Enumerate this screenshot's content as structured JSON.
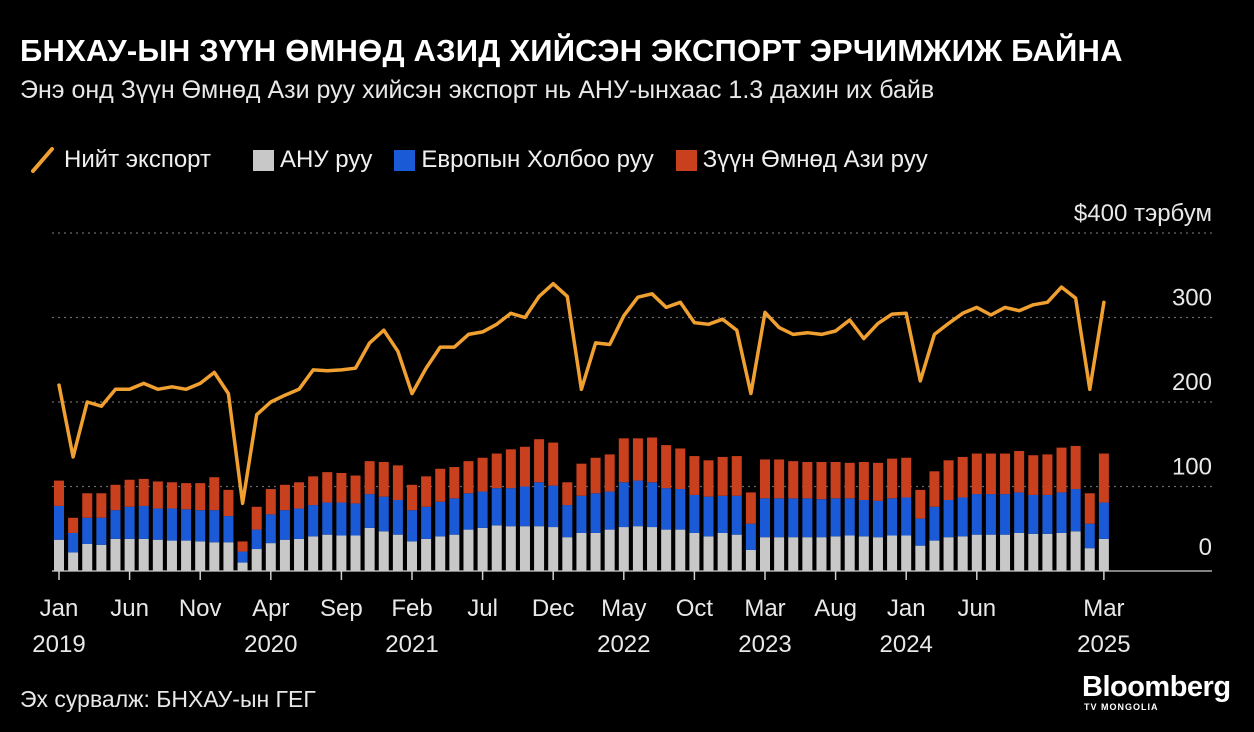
{
  "header": {
    "title": "БНХАУ-ЫН ЗҮҮН ӨМНӨД АЗИД ХИЙСЭН ЭКСПОРТ ЭРЧИМЖИЖ БАЙНА",
    "subtitle": "Энэ онд Зүүн Өмнөд Ази руу хийсэн экспорт нь АНУ-ынхаас 1.3 дахин их байв"
  },
  "legend": {
    "total": "Нийт экспорт",
    "us": "АНУ руу",
    "eu": "Европын Холбоо руу",
    "sea": "Зүүн Өмнөд Ази руу"
  },
  "footer": {
    "source": "Эх сурвалж: БНХАУ-ын ГЕГ",
    "logo_main": "Bloomberg",
    "logo_sub": "TV MONGOLIA"
  },
  "colors": {
    "total": "#f0a030",
    "us": "#c8c8c8",
    "eu": "#1a5ad6",
    "sea": "#c8401e",
    "grid": "#6a6a6a",
    "background": "#000000"
  },
  "chart_data": {
    "type": "bar",
    "stacked": true,
    "ylim": [
      0,
      400
    ],
    "yticks": [
      0,
      100,
      200,
      300,
      400
    ],
    "ytick_labels": [
      "0",
      "100",
      "200",
      "300",
      "$400 тэрбум"
    ],
    "grid": true,
    "xticks": [
      {
        "index": 0,
        "month": "Jan",
        "year": "2019"
      },
      {
        "index": 5,
        "month": "Jun",
        "year": ""
      },
      {
        "index": 10,
        "month": "Nov",
        "year": ""
      },
      {
        "index": 15,
        "month": "Apr",
        "year": "2020"
      },
      {
        "index": 20,
        "month": "Sep",
        "year": ""
      },
      {
        "index": 25,
        "month": "Feb",
        "year": "2021"
      },
      {
        "index": 30,
        "month": "Jul",
        "year": ""
      },
      {
        "index": 35,
        "month": "Dec",
        "year": ""
      },
      {
        "index": 40,
        "month": "May",
        "year": "2022"
      },
      {
        "index": 45,
        "month": "Oct",
        "year": ""
      },
      {
        "index": 50,
        "month": "Mar",
        "year": "2023"
      },
      {
        "index": 55,
        "month": "Aug",
        "year": ""
      },
      {
        "index": 60,
        "month": "Jan",
        "year": "2024"
      },
      {
        "index": 65,
        "month": "Jun",
        "year": ""
      },
      {
        "index": 74,
        "month": "Mar",
        "year": "2025"
      }
    ],
    "x": [
      "2019-01",
      "2019-02",
      "2019-03",
      "2019-04",
      "2019-05",
      "2019-06",
      "2019-07",
      "2019-08",
      "2019-09",
      "2019-10",
      "2019-11",
      "2019-12",
      "2020-01",
      "2020-02",
      "2020-03",
      "2020-04",
      "2020-05",
      "2020-06",
      "2020-07",
      "2020-08",
      "2020-09",
      "2020-10",
      "2020-11",
      "2020-12",
      "2021-01",
      "2021-02",
      "2021-03",
      "2021-04",
      "2021-05",
      "2021-06",
      "2021-07",
      "2021-08",
      "2021-09",
      "2021-10",
      "2021-11",
      "2021-12",
      "2022-01",
      "2022-02",
      "2022-03",
      "2022-04",
      "2022-05",
      "2022-06",
      "2022-07",
      "2022-08",
      "2022-09",
      "2022-10",
      "2022-11",
      "2022-12",
      "2023-01",
      "2023-02",
      "2023-03",
      "2023-04",
      "2023-05",
      "2023-06",
      "2023-07",
      "2023-08",
      "2023-09",
      "2023-10",
      "2023-11",
      "2023-12",
      "2024-01",
      "2024-02",
      "2024-03",
      "2024-04",
      "2024-05",
      "2024-06",
      "2024-07",
      "2024-08",
      "2024-09",
      "2024-10",
      "2024-11",
      "2024-12",
      "2025-01",
      "2025-02",
      "2025-03"
    ],
    "series": [
      {
        "name": "АНУ руу",
        "kind": "bar",
        "values": [
          37,
          22,
          32,
          31,
          38,
          38,
          38,
          37,
          36,
          36,
          35,
          34,
          34,
          10,
          26,
          33,
          37,
          38,
          41,
          43,
          42,
          42,
          51,
          47,
          43,
          35,
          38,
          41,
          43,
          49,
          51,
          54,
          53,
          53,
          53,
          52,
          40,
          45,
          45,
          49,
          52,
          53,
          52,
          49,
          49,
          45,
          41,
          45,
          43,
          25,
          40,
          40,
          40,
          40,
          40,
          41,
          42,
          41,
          40,
          42,
          42,
          30,
          36,
          40,
          41,
          43,
          43,
          43,
          45,
          44,
          44,
          45,
          47,
          27,
          38
        ]
      },
      {
        "name": "Европын Холбоо руу",
        "kind": "bar",
        "values": [
          40,
          23,
          31,
          32,
          34,
          38,
          39,
          37,
          38,
          37,
          37,
          38,
          31,
          13,
          23,
          34,
          35,
          36,
          37,
          38,
          39,
          38,
          40,
          41,
          41,
          37,
          38,
          41,
          43,
          43,
          43,
          44,
          45,
          47,
          52,
          49,
          38,
          44,
          47,
          45,
          53,
          54,
          53,
          49,
          48,
          45,
          47,
          44,
          46,
          31,
          46,
          46,
          46,
          46,
          45,
          45,
          44,
          43,
          43,
          44,
          45,
          32,
          40,
          44,
          46,
          48,
          48,
          48,
          48,
          46,
          46,
          48,
          50,
          29,
          43
        ]
      },
      {
        "name": "Зүүн Өмнөд Ази руу",
        "kind": "bar",
        "values": [
          30,
          18,
          29,
          29,
          30,
          32,
          32,
          32,
          31,
          31,
          32,
          39,
          31,
          12,
          27,
          30,
          30,
          31,
          34,
          36,
          35,
          33,
          39,
          41,
          41,
          30,
          36,
          39,
          37,
          38,
          40,
          41,
          46,
          47,
          51,
          51,
          27,
          38,
          42,
          44,
          52,
          50,
          53,
          51,
          48,
          46,
          43,
          46,
          47,
          37,
          46,
          46,
          44,
          43,
          44,
          43,
          42,
          45,
          45,
          47,
          47,
          34,
          42,
          47,
          48,
          48,
          48,
          48,
          49,
          47,
          48,
          53,
          51,
          36,
          58
        ]
      },
      {
        "name": "Нийт экспорт",
        "kind": "line",
        "values": [
          220,
          135,
          200,
          195,
          215,
          215,
          222,
          215,
          218,
          215,
          222,
          235,
          210,
          80,
          185,
          200,
          208,
          215,
          238,
          237,
          238,
          240,
          270,
          285,
          260,
          210,
          240,
          265,
          265,
          280,
          283,
          292,
          305,
          300,
          325,
          340,
          325,
          215,
          270,
          268,
          302,
          324,
          328,
          312,
          318,
          294,
          292,
          298,
          285,
          210,
          306,
          288,
          280,
          282,
          280,
          284,
          297,
          275,
          293,
          304,
          305,
          225,
          280,
          293,
          305,
          312,
          303,
          312,
          308,
          315,
          318,
          336,
          323,
          215,
          318
        ]
      }
    ]
  }
}
